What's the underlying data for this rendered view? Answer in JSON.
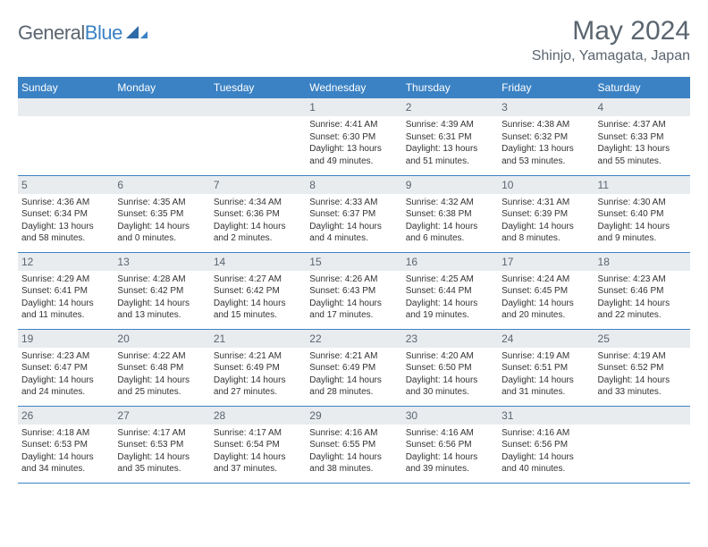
{
  "logo": {
    "text1": "General",
    "text2": "Blue"
  },
  "header": {
    "title": "May 2024",
    "location": "Shinjo, Yamagata, Japan"
  },
  "colors": {
    "header_bg": "#3b82c4",
    "header_text": "#ffffff",
    "daynum_bg": "#e9ecef",
    "text_gray": "#5a6570",
    "border": "#3b82c4"
  },
  "weekdays": [
    "Sunday",
    "Monday",
    "Tuesday",
    "Wednesday",
    "Thursday",
    "Friday",
    "Saturday"
  ],
  "weeks": [
    [
      null,
      null,
      null,
      {
        "n": "1",
        "sr": "Sunrise: 4:41 AM",
        "ss": "Sunset: 6:30 PM",
        "d1": "Daylight: 13 hours",
        "d2": "and 49 minutes."
      },
      {
        "n": "2",
        "sr": "Sunrise: 4:39 AM",
        "ss": "Sunset: 6:31 PM",
        "d1": "Daylight: 13 hours",
        "d2": "and 51 minutes."
      },
      {
        "n": "3",
        "sr": "Sunrise: 4:38 AM",
        "ss": "Sunset: 6:32 PM",
        "d1": "Daylight: 13 hours",
        "d2": "and 53 minutes."
      },
      {
        "n": "4",
        "sr": "Sunrise: 4:37 AM",
        "ss": "Sunset: 6:33 PM",
        "d1": "Daylight: 13 hours",
        "d2": "and 55 minutes."
      }
    ],
    [
      {
        "n": "5",
        "sr": "Sunrise: 4:36 AM",
        "ss": "Sunset: 6:34 PM",
        "d1": "Daylight: 13 hours",
        "d2": "and 58 minutes."
      },
      {
        "n": "6",
        "sr": "Sunrise: 4:35 AM",
        "ss": "Sunset: 6:35 PM",
        "d1": "Daylight: 14 hours",
        "d2": "and 0 minutes."
      },
      {
        "n": "7",
        "sr": "Sunrise: 4:34 AM",
        "ss": "Sunset: 6:36 PM",
        "d1": "Daylight: 14 hours",
        "d2": "and 2 minutes."
      },
      {
        "n": "8",
        "sr": "Sunrise: 4:33 AM",
        "ss": "Sunset: 6:37 PM",
        "d1": "Daylight: 14 hours",
        "d2": "and 4 minutes."
      },
      {
        "n": "9",
        "sr": "Sunrise: 4:32 AM",
        "ss": "Sunset: 6:38 PM",
        "d1": "Daylight: 14 hours",
        "d2": "and 6 minutes."
      },
      {
        "n": "10",
        "sr": "Sunrise: 4:31 AM",
        "ss": "Sunset: 6:39 PM",
        "d1": "Daylight: 14 hours",
        "d2": "and 8 minutes."
      },
      {
        "n": "11",
        "sr": "Sunrise: 4:30 AM",
        "ss": "Sunset: 6:40 PM",
        "d1": "Daylight: 14 hours",
        "d2": "and 9 minutes."
      }
    ],
    [
      {
        "n": "12",
        "sr": "Sunrise: 4:29 AM",
        "ss": "Sunset: 6:41 PM",
        "d1": "Daylight: 14 hours",
        "d2": "and 11 minutes."
      },
      {
        "n": "13",
        "sr": "Sunrise: 4:28 AM",
        "ss": "Sunset: 6:42 PM",
        "d1": "Daylight: 14 hours",
        "d2": "and 13 minutes."
      },
      {
        "n": "14",
        "sr": "Sunrise: 4:27 AM",
        "ss": "Sunset: 6:42 PM",
        "d1": "Daylight: 14 hours",
        "d2": "and 15 minutes."
      },
      {
        "n": "15",
        "sr": "Sunrise: 4:26 AM",
        "ss": "Sunset: 6:43 PM",
        "d1": "Daylight: 14 hours",
        "d2": "and 17 minutes."
      },
      {
        "n": "16",
        "sr": "Sunrise: 4:25 AM",
        "ss": "Sunset: 6:44 PM",
        "d1": "Daylight: 14 hours",
        "d2": "and 19 minutes."
      },
      {
        "n": "17",
        "sr": "Sunrise: 4:24 AM",
        "ss": "Sunset: 6:45 PM",
        "d1": "Daylight: 14 hours",
        "d2": "and 20 minutes."
      },
      {
        "n": "18",
        "sr": "Sunrise: 4:23 AM",
        "ss": "Sunset: 6:46 PM",
        "d1": "Daylight: 14 hours",
        "d2": "and 22 minutes."
      }
    ],
    [
      {
        "n": "19",
        "sr": "Sunrise: 4:23 AM",
        "ss": "Sunset: 6:47 PM",
        "d1": "Daylight: 14 hours",
        "d2": "and 24 minutes."
      },
      {
        "n": "20",
        "sr": "Sunrise: 4:22 AM",
        "ss": "Sunset: 6:48 PM",
        "d1": "Daylight: 14 hours",
        "d2": "and 25 minutes."
      },
      {
        "n": "21",
        "sr": "Sunrise: 4:21 AM",
        "ss": "Sunset: 6:49 PM",
        "d1": "Daylight: 14 hours",
        "d2": "and 27 minutes."
      },
      {
        "n": "22",
        "sr": "Sunrise: 4:21 AM",
        "ss": "Sunset: 6:49 PM",
        "d1": "Daylight: 14 hours",
        "d2": "and 28 minutes."
      },
      {
        "n": "23",
        "sr": "Sunrise: 4:20 AM",
        "ss": "Sunset: 6:50 PM",
        "d1": "Daylight: 14 hours",
        "d2": "and 30 minutes."
      },
      {
        "n": "24",
        "sr": "Sunrise: 4:19 AM",
        "ss": "Sunset: 6:51 PM",
        "d1": "Daylight: 14 hours",
        "d2": "and 31 minutes."
      },
      {
        "n": "25",
        "sr": "Sunrise: 4:19 AM",
        "ss": "Sunset: 6:52 PM",
        "d1": "Daylight: 14 hours",
        "d2": "and 33 minutes."
      }
    ],
    [
      {
        "n": "26",
        "sr": "Sunrise: 4:18 AM",
        "ss": "Sunset: 6:53 PM",
        "d1": "Daylight: 14 hours",
        "d2": "and 34 minutes."
      },
      {
        "n": "27",
        "sr": "Sunrise: 4:17 AM",
        "ss": "Sunset: 6:53 PM",
        "d1": "Daylight: 14 hours",
        "d2": "and 35 minutes."
      },
      {
        "n": "28",
        "sr": "Sunrise: 4:17 AM",
        "ss": "Sunset: 6:54 PM",
        "d1": "Daylight: 14 hours",
        "d2": "and 37 minutes."
      },
      {
        "n": "29",
        "sr": "Sunrise: 4:16 AM",
        "ss": "Sunset: 6:55 PM",
        "d1": "Daylight: 14 hours",
        "d2": "and 38 minutes."
      },
      {
        "n": "30",
        "sr": "Sunrise: 4:16 AM",
        "ss": "Sunset: 6:56 PM",
        "d1": "Daylight: 14 hours",
        "d2": "and 39 minutes."
      },
      {
        "n": "31",
        "sr": "Sunrise: 4:16 AM",
        "ss": "Sunset: 6:56 PM",
        "d1": "Daylight: 14 hours",
        "d2": "and 40 minutes."
      },
      null
    ]
  ]
}
